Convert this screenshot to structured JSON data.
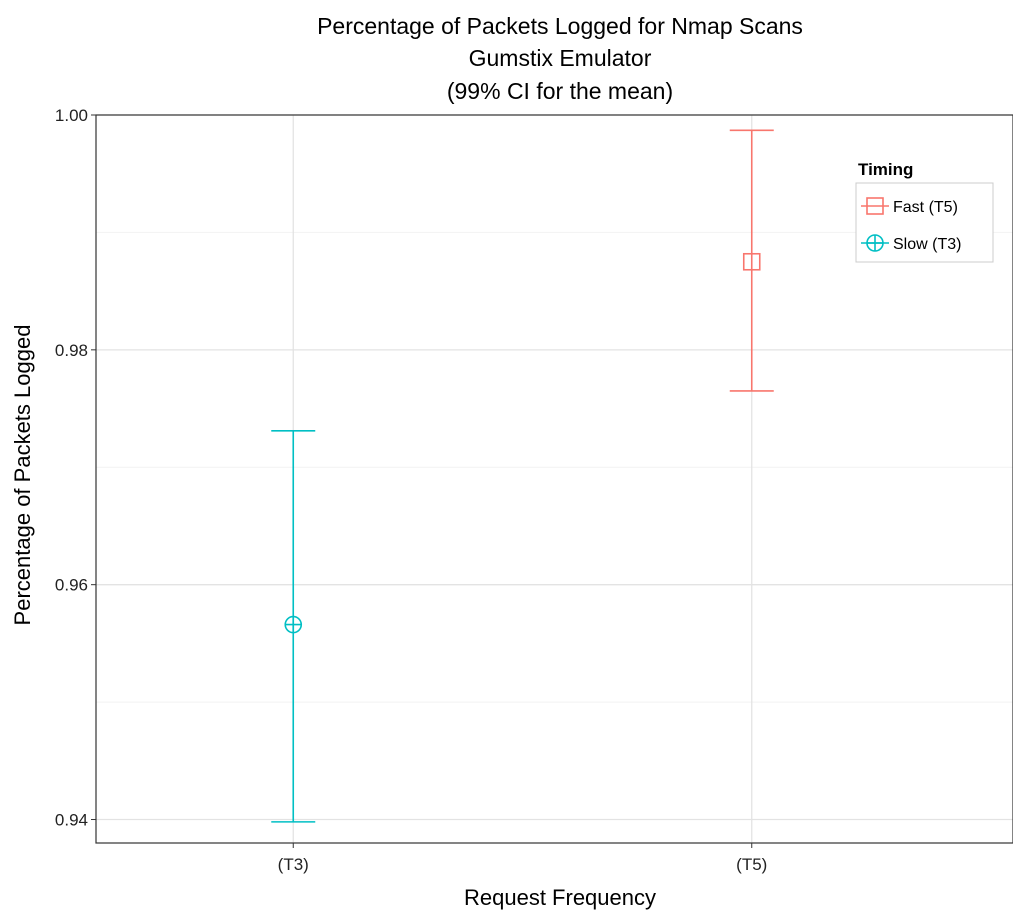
{
  "chart_data": {
    "type": "scatter",
    "title_lines": [
      "Percentage of Packets Logged for Nmap Scans",
      "Gumstix Emulator",
      "(99% CI for the mean)"
    ],
    "xlabel": "Request Frequency",
    "ylabel": "Percentage of Packets Logged",
    "categories": [
      "(T3)",
      "(T5)"
    ],
    "yticks": [
      "0.94",
      "0.96",
      "0.98",
      "1.00"
    ],
    "ylim": [
      0.938,
      1.0
    ],
    "grid": true,
    "legend": {
      "title": "Timing",
      "position": "top-right",
      "items": [
        "Fast (T5)",
        "Slow (T3)"
      ]
    },
    "series": [
      {
        "name": "Fast (T5)",
        "color": "#f8766d",
        "marker": "square",
        "category": "(T5)",
        "mean": 0.9875,
        "lower": 0.9765,
        "upper": 0.9987
      },
      {
        "name": "Slow (T3)",
        "color": "#00bfc4",
        "marker": "circle-plus",
        "category": "(T3)",
        "mean": 0.9566,
        "lower": 0.9398,
        "upper": 0.9731
      }
    ]
  }
}
